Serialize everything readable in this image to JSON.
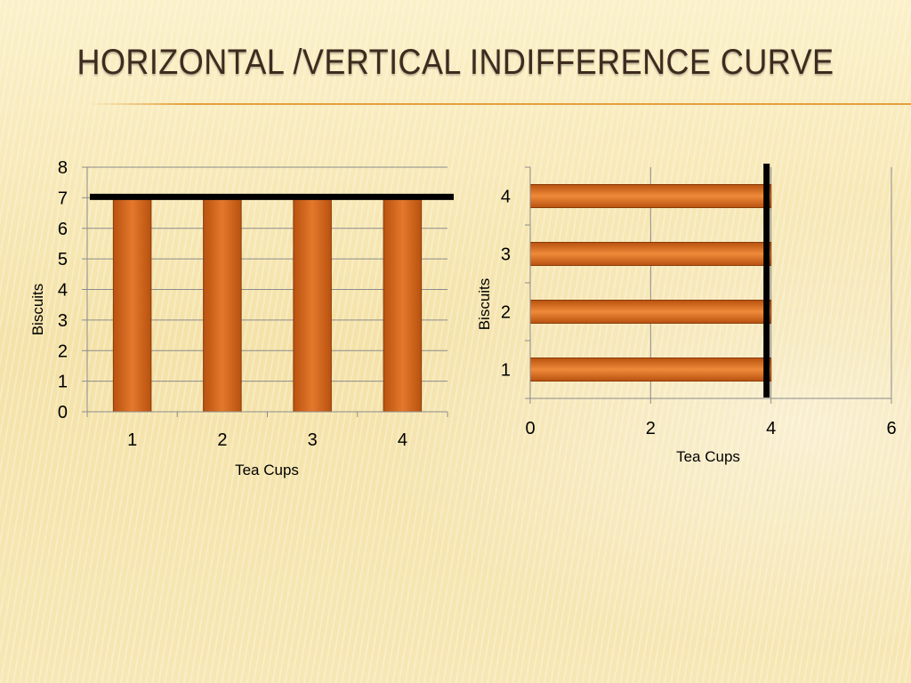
{
  "slide": {
    "title": "Horizontal /Vertical Indifference Curve"
  },
  "colors": {
    "bar_fill_edge": "#b8520f",
    "bar_fill_center": "#e4782c",
    "bar_outline": "#8a3c0a",
    "curve": "#000000",
    "grid": "#8c8c8c"
  },
  "chart_data": [
    {
      "type": "bar",
      "orientation": "vertical",
      "categories": [
        "1",
        "2",
        "3",
        "4"
      ],
      "values": [
        7,
        7,
        7,
        7
      ],
      "xlabel": "Tea Cups",
      "ylabel": "Biscuits",
      "ylim": [
        0,
        8
      ],
      "yticks": [
        0,
        1,
        2,
        3,
        4,
        5,
        6,
        7,
        8
      ],
      "grid": true,
      "annotation": {
        "type": "horizontal-line",
        "y": 7
      }
    },
    {
      "type": "bar",
      "orientation": "horizontal",
      "categories": [
        "1",
        "2",
        "3",
        "4"
      ],
      "values": [
        4,
        4,
        4,
        4
      ],
      "xlabel": "Tea Cups",
      "ylabel": "Biscuits",
      "xlim": [
        0,
        6
      ],
      "xticks": [
        0,
        2,
        4,
        6
      ],
      "grid": true,
      "annotation": {
        "type": "vertical-line",
        "x": 4
      }
    }
  ]
}
